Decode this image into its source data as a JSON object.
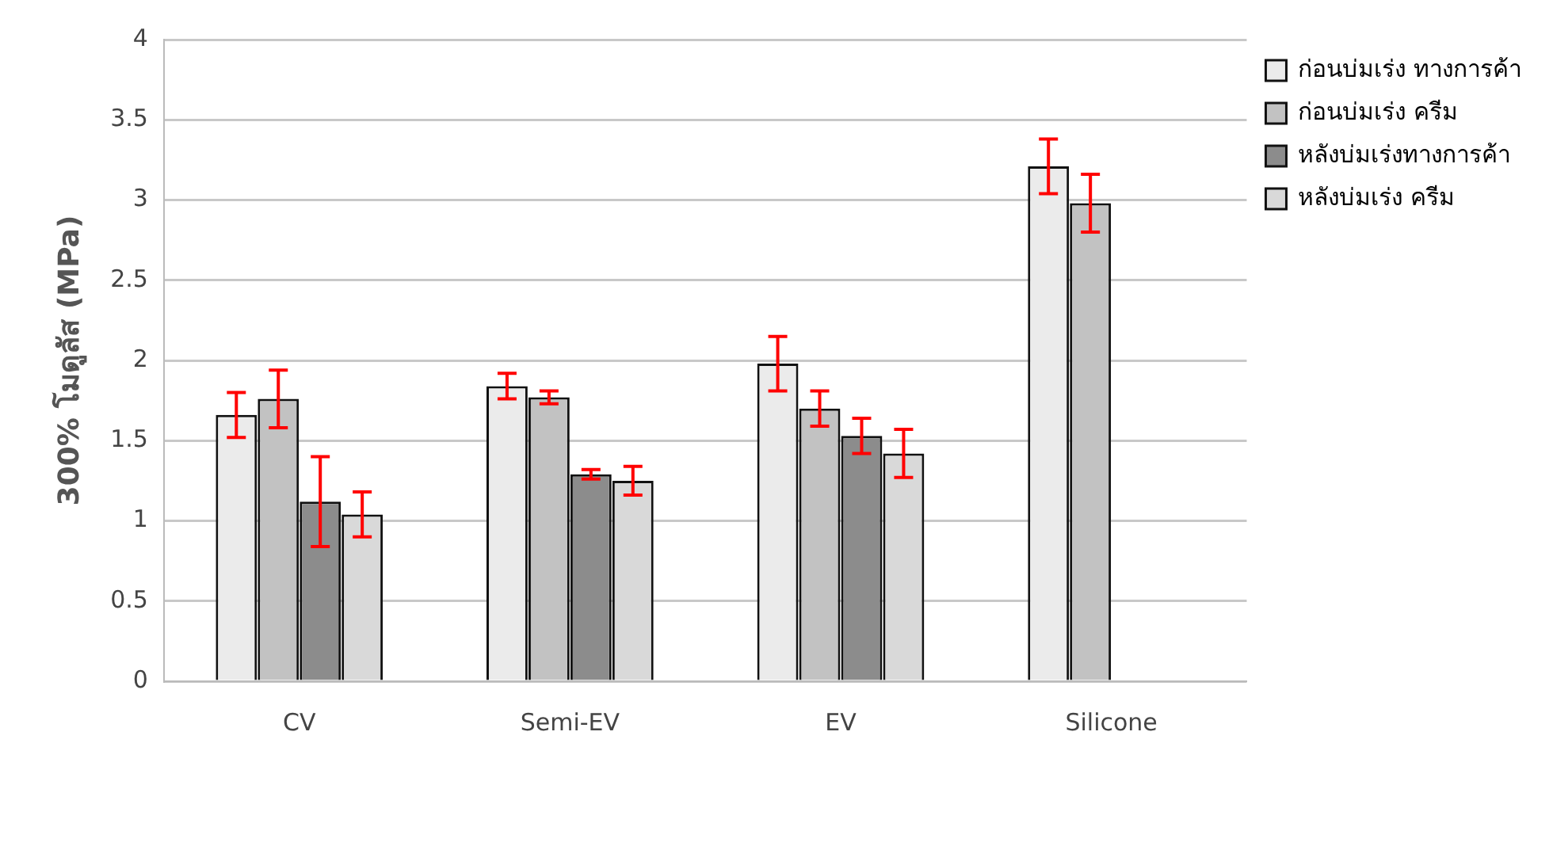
{
  "chart_data": {
    "type": "bar",
    "ylabel": "300% โมดูลัส (MPa)",
    "categories": [
      "CV",
      "Semi-EV",
      "EV",
      "Silicone"
    ],
    "series": [
      {
        "name": "ก่อนบ่มเร่ง ทางการค้า",
        "color": "#ebebeb",
        "values": [
          1.66,
          1.84,
          1.98,
          3.21
        ],
        "errors": [
          0.14,
          0.08,
          0.17,
          0.17
        ]
      },
      {
        "name": "ก่อนบ่มเร่ง ครีม",
        "color": "#c2c2c2",
        "values": [
          1.76,
          1.77,
          1.7,
          2.98
        ],
        "errors": [
          0.18,
          0.04,
          0.11,
          0.18
        ]
      },
      {
        "name": "หลังบ่มเร่งทางการค้า",
        "color": "#8c8c8c",
        "values": [
          1.12,
          1.29,
          1.53,
          null
        ],
        "errors": [
          0.28,
          0.03,
          0.11,
          null
        ]
      },
      {
        "name": "หลังบ่มเร่ง ครีม",
        "color": "#d9d9d9",
        "values": [
          1.04,
          1.25,
          1.42,
          null
        ],
        "errors": [
          0.14,
          0.09,
          0.15,
          null
        ]
      }
    ],
    "ylim": [
      0,
      4
    ],
    "yticks": [
      0,
      0.5,
      1,
      1.5,
      2,
      2.5,
      3,
      3.5,
      4
    ],
    "grid": "y",
    "legend": "top right"
  }
}
